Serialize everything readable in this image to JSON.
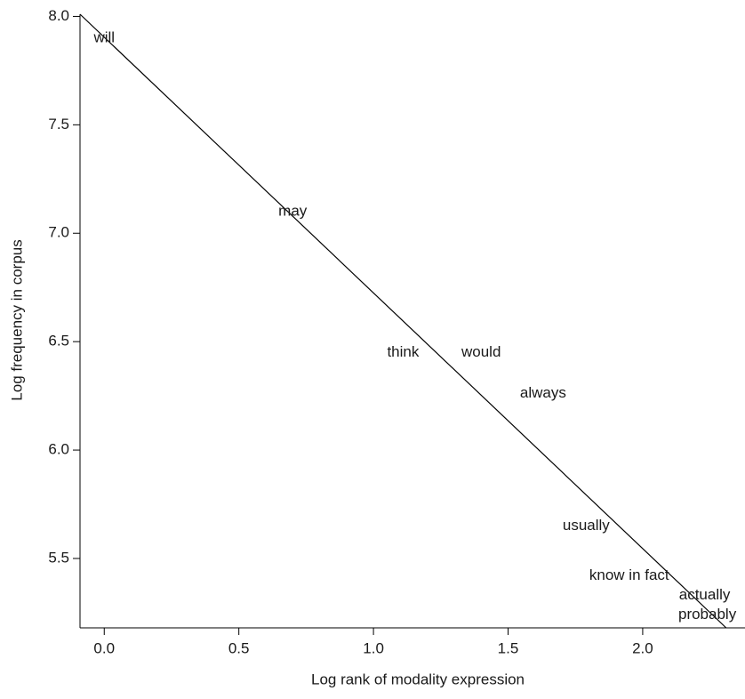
{
  "chart_data": {
    "type": "scatter",
    "x_label": "Log rank of modality expression",
    "y_label": "Log frequency in corpus",
    "labels": [
      "will",
      "may",
      "think",
      "would",
      "always",
      "usually",
      "know in fact",
      "actually",
      "probably"
    ],
    "x": [
      0.0,
      0.7,
      1.11,
      1.4,
      1.63,
      1.79,
      1.95,
      2.23,
      2.24
    ],
    "values": [
      7.9,
      7.1,
      6.45,
      6.45,
      6.26,
      5.65,
      5.42,
      5.33,
      5.24
    ],
    "color": "#000000",
    "fit_line": {
      "x": [
        -0.09,
        2.31
      ],
      "values": [
        8.01,
        5.18
      ],
      "color": "#000000"
    },
    "xlim": [
      -0.09,
      2.38
    ],
    "ylim": [
      5.18,
      8.01
    ],
    "xticks": [
      {
        "value": 0,
        "label": "0.0"
      },
      0.5,
      {
        "value": 1,
        "label": "1.0"
      },
      1.5,
      {
        "value": 2,
        "label": "2.0"
      }
    ],
    "yticks": [
      5.5,
      {
        "value": 6,
        "label": "6.0"
      },
      6.5,
      {
        "value": 7,
        "label": "7.0"
      },
      7.5,
      {
        "value": 8,
        "label": "8.0"
      }
    ],
    "grid": false
  }
}
